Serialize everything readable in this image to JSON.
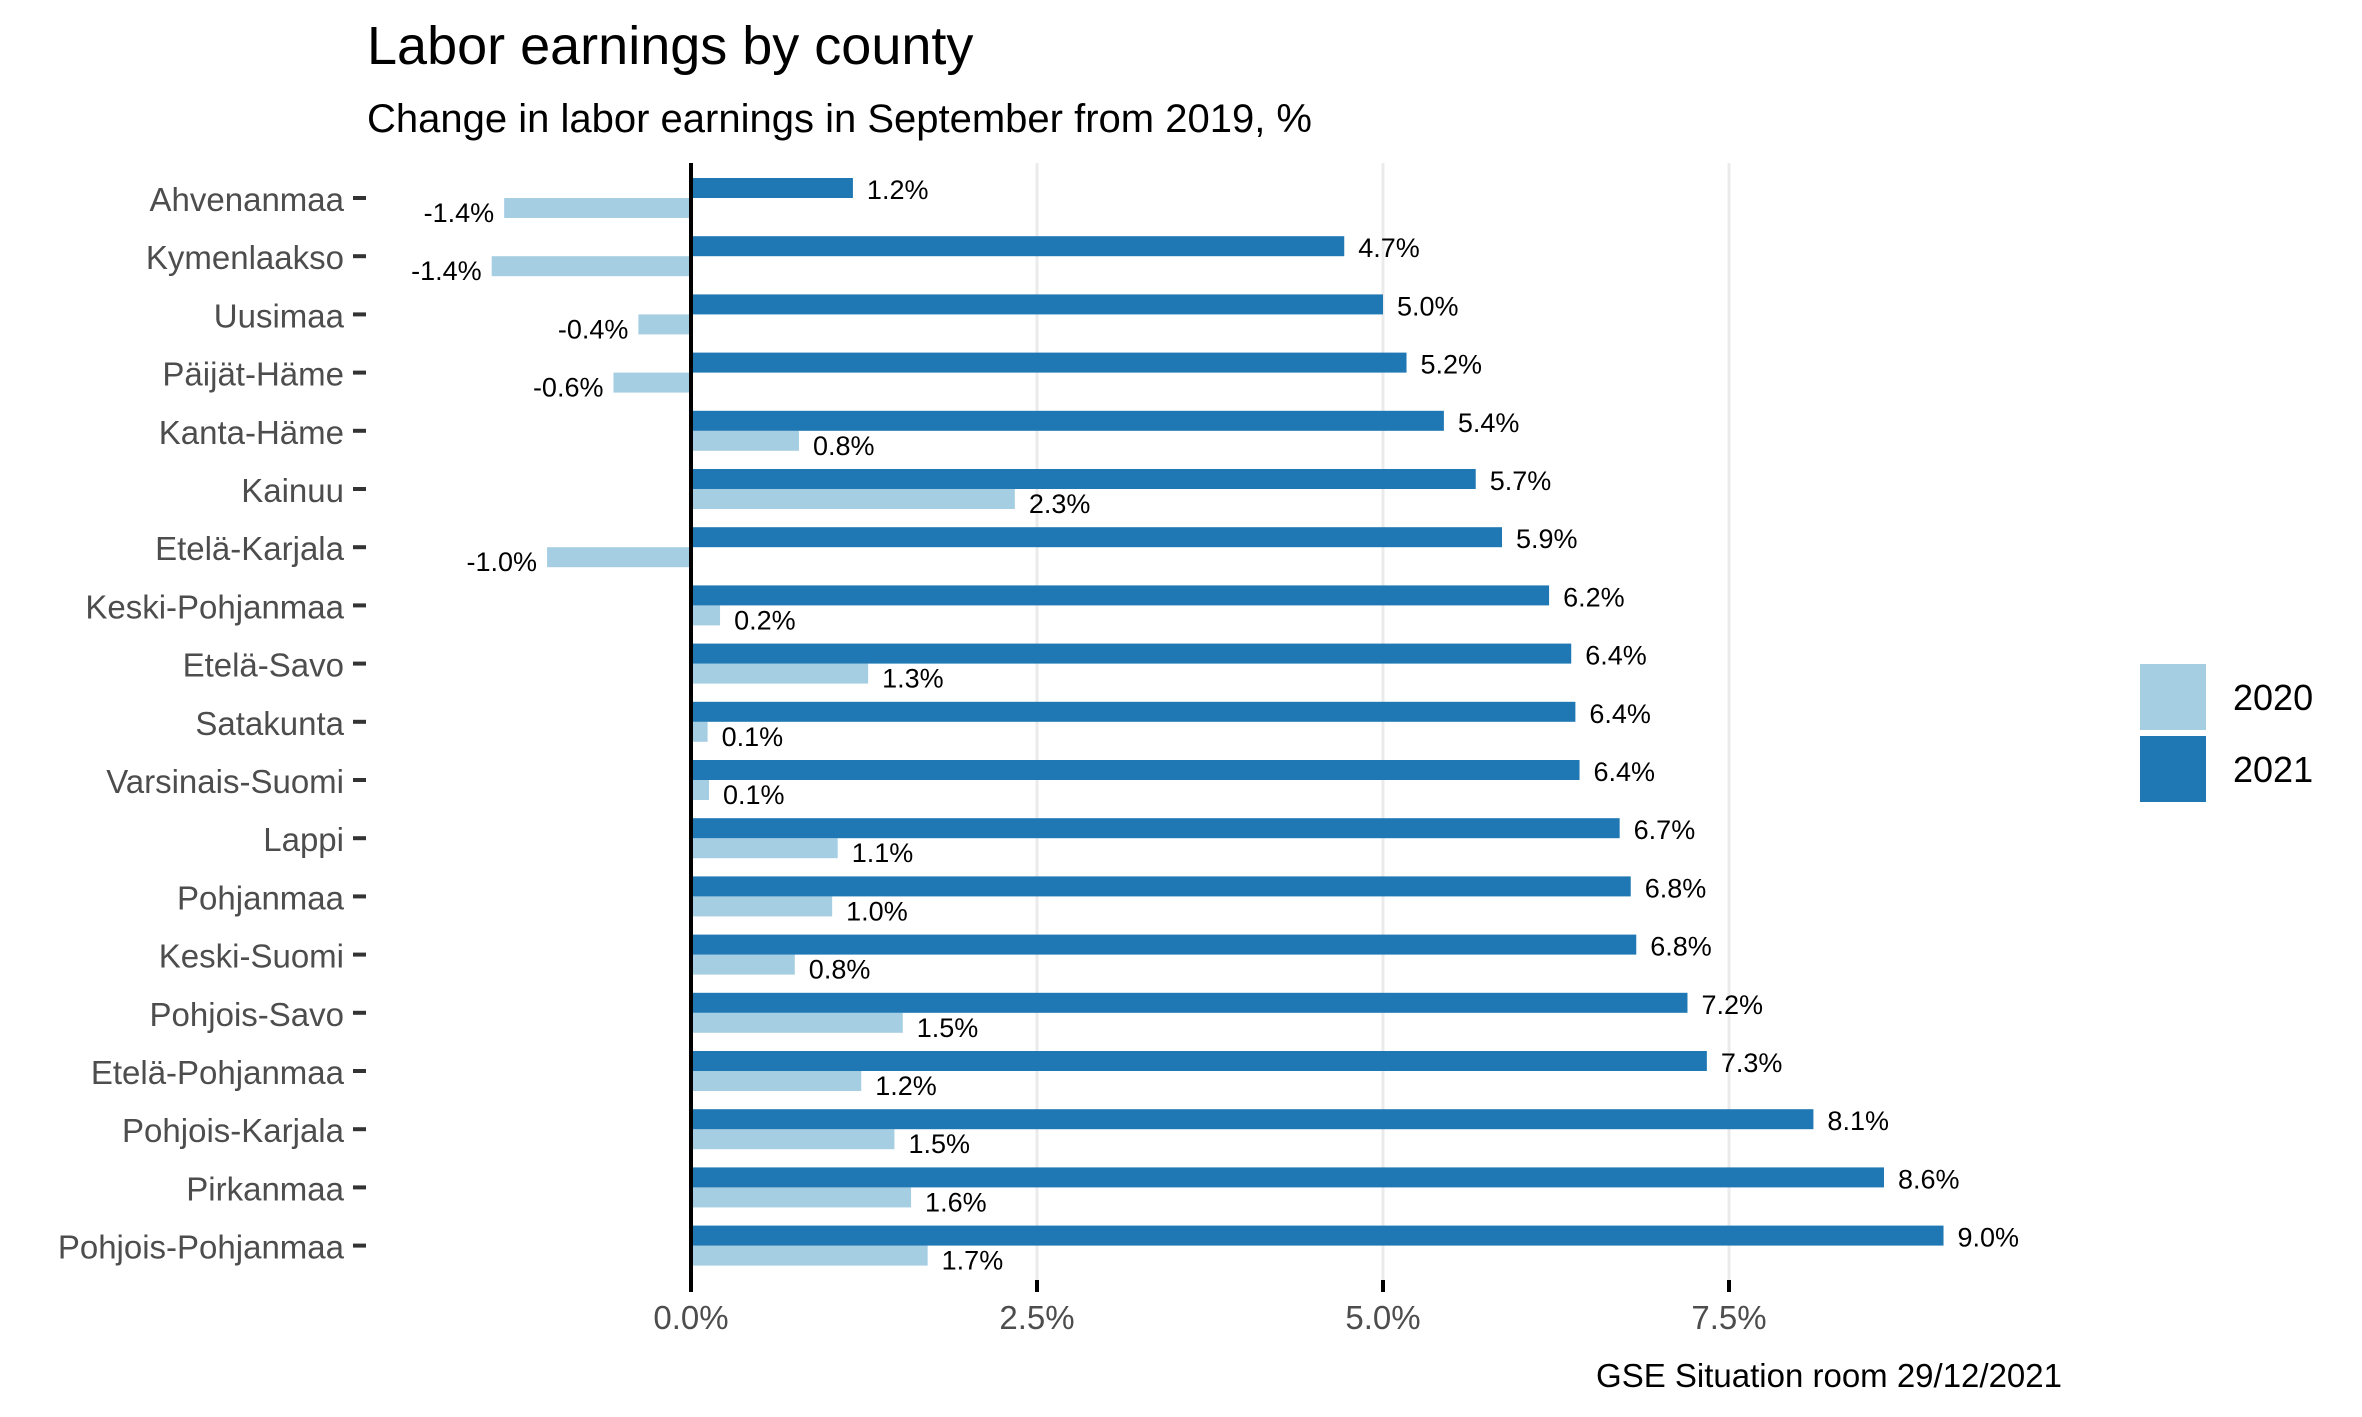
{
  "chart_data": {
    "type": "bar",
    "orientation": "horizontal",
    "title": "Labor earnings by county",
    "subtitle": "Change in labor earnings in September from 2019, %",
    "caption": "GSE Situation room 29/12/2021",
    "xlabel": "",
    "ylabel": "",
    "xlim": [
      -1.5,
      9.2
    ],
    "x_ticks": [
      0.0,
      2.5,
      5.0,
      7.5
    ],
    "x_tick_labels": [
      "0.0%",
      "2.5%",
      "5.0%",
      "7.5%"
    ],
    "grid": "vertical-major",
    "legend_position": "right",
    "categories": [
      "Ahvenanmaa",
      "Kymenlaakso",
      "Uusimaa",
      "Päijät-Häme",
      "Kanta-Häme",
      "Kainuu",
      "Etelä-Karjala",
      "Keski-Pohjanmaa",
      "Etelä-Savo",
      "Satakunta",
      "Varsinais-Suomi",
      "Lappi",
      "Pohjanmaa",
      "Keski-Suomi",
      "Pohjois-Savo",
      "Etelä-Pohjanmaa",
      "Pohjois-Karjala",
      "Pirkanmaa",
      "Pohjois-Pohjanmaa"
    ],
    "series": [
      {
        "name": "2020",
        "color": "#a6cee3",
        "values": [
          -1.35,
          -1.44,
          -0.38,
          -0.56,
          0.78,
          2.34,
          -1.04,
          0.21,
          1.28,
          0.12,
          0.13,
          1.06,
          1.02,
          0.75,
          1.53,
          1.23,
          1.47,
          1.59,
          1.71
        ],
        "labels": [
          "-1.4%",
          "-1.4%",
          "-0.4%",
          "-0.6%",
          "0.8%",
          "2.3%",
          "-1.0%",
          "0.2%",
          "1.3%",
          "0.1%",
          "0.1%",
          "1.1%",
          "1.0%",
          "0.8%",
          "1.5%",
          "1.2%",
          "1.5%",
          "1.6%",
          "1.7%"
        ]
      },
      {
        "name": "2021",
        "color": "#1f78b4",
        "values": [
          1.17,
          4.72,
          5.0,
          5.17,
          5.44,
          5.67,
          5.86,
          6.2,
          6.36,
          6.39,
          6.42,
          6.71,
          6.79,
          6.83,
          7.2,
          7.34,
          8.11,
          8.62,
          9.05
        ],
        "labels": [
          "1.2%",
          "4.7%",
          "5.0%",
          "5.2%",
          "5.4%",
          "5.7%",
          "5.9%",
          "6.2%",
          "6.4%",
          "6.4%",
          "6.4%",
          "6.7%",
          "6.8%",
          "6.8%",
          "7.2%",
          "7.3%",
          "8.1%",
          "8.6%",
          "9.0%"
        ]
      }
    ],
    "legend": [
      {
        "label": "2020",
        "color": "#a6cee3"
      },
      {
        "label": "2021",
        "color": "#1f78b4"
      }
    ]
  }
}
